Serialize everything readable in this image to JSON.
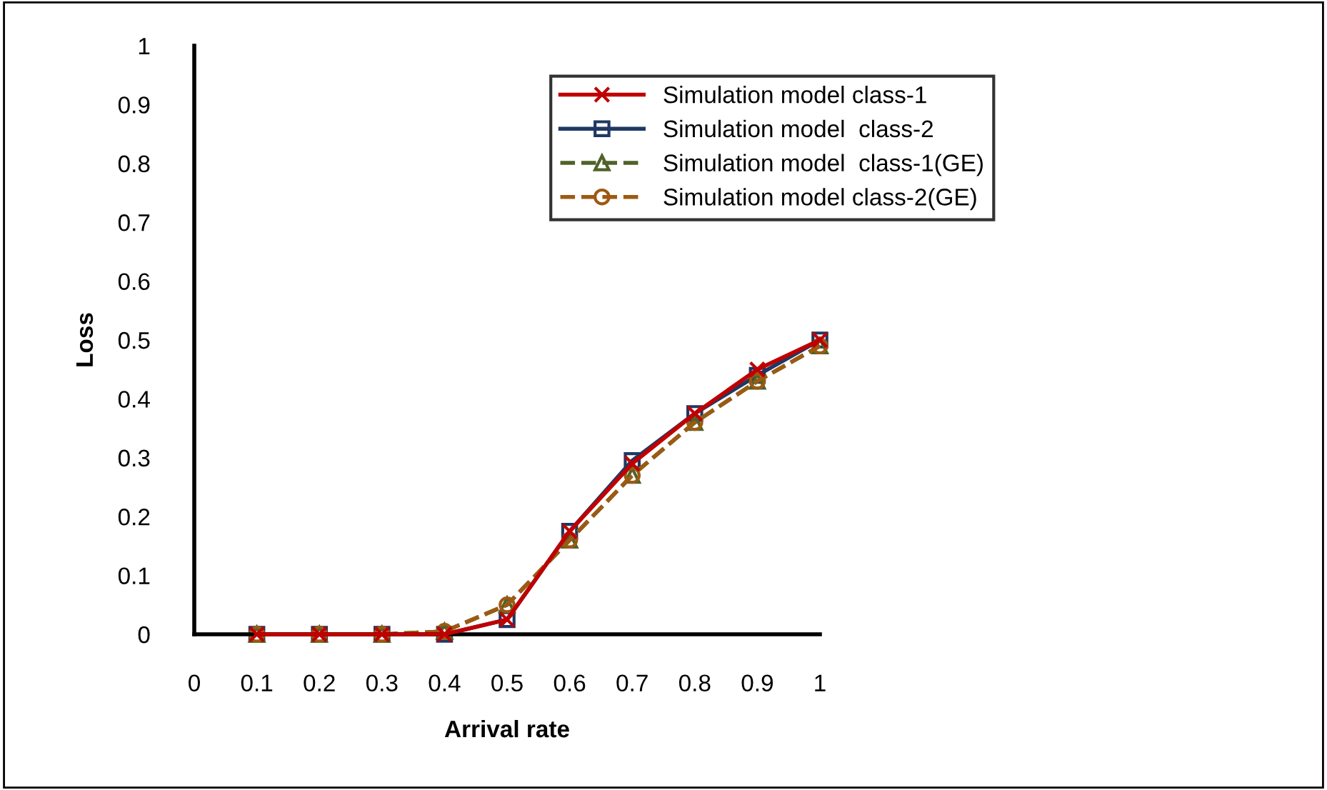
{
  "chart_data": {
    "type": "line",
    "xlabel": "Arrival rate",
    "ylabel": "Loss",
    "x": [
      0.1,
      0.2,
      0.3,
      0.4,
      0.5,
      0.6,
      0.7,
      0.8,
      0.9,
      1
    ],
    "xlim": [
      0,
      1
    ],
    "xticks": [
      0,
      0.1,
      0.2,
      0.3,
      0.4,
      0.5,
      0.6,
      0.7,
      0.8,
      0.9,
      1
    ],
    "ylim": [
      0,
      1
    ],
    "yticks": [
      0,
      0.1,
      0.2,
      0.3,
      0.4,
      0.5,
      0.6,
      0.7,
      0.8,
      0.9,
      1
    ],
    "grid": false,
    "legend": "top right",
    "series": [
      {
        "name": "Simulation model class-1",
        "color": "#c00000",
        "marker": "cross",
        "line_style": "solid",
        "values": [
          0,
          0,
          0,
          0,
          0.025,
          0.175,
          0.29,
          0.375,
          0.45,
          0.5
        ]
      },
      {
        "name": "Simulation model  class-2",
        "color": "#1f3864",
        "marker": "square",
        "line_style": "solid",
        "values": [
          0,
          0,
          0,
          0,
          0.025,
          0.175,
          0.295,
          0.375,
          0.44,
          0.5
        ]
      },
      {
        "name": "Simulation model  class-1(GE)",
        "color": "#4f6228",
        "marker": "triangle",
        "line_style": "dashed",
        "values": [
          0,
          0,
          0,
          0.005,
          0.05,
          0.16,
          0.27,
          0.36,
          0.43,
          0.49
        ]
      },
      {
        "name": "Simulation model class-2(GE)",
        "color": "#9c5a12",
        "marker": "circle",
        "line_style": "dashed",
        "values": [
          0,
          0,
          0,
          0.005,
          0.05,
          0.16,
          0.27,
          0.36,
          0.43,
          0.49
        ]
      }
    ]
  }
}
